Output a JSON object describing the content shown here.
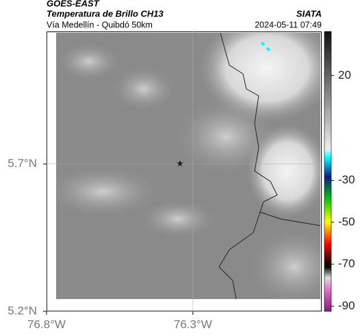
{
  "header": {
    "source": "GOES-EAST",
    "title": "Temperatura de Brillo CH13",
    "subtitle": "Vía Medellín - Quibdó 50km",
    "org": "SIATA",
    "datetime": "2024-05-11 07:49"
  },
  "map": {
    "xlim": [
      -76.8,
      -75.86
    ],
    "ylim": [
      5.2,
      6.15
    ],
    "xticks": [
      {
        "value": -76.8,
        "label": "76.8°W"
      },
      {
        "value": -76.3,
        "label": "76.3°W"
      }
    ],
    "yticks": [
      {
        "value": 5.7,
        "label": "5.7°N"
      },
      {
        "value": 5.2,
        "label": "5.2°N"
      }
    ],
    "clim": [
      -92.5,
      41
    ],
    "cticks": [
      20,
      -30,
      -50,
      -70,
      -90
    ]
  }
}
